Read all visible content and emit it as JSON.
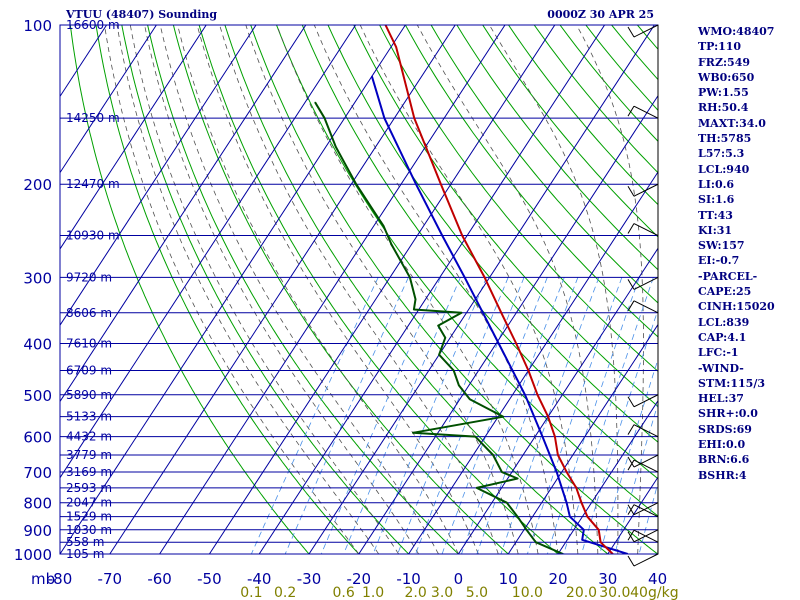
{
  "header": {
    "station": "VTUU (48407) Sounding",
    "timestamp": "0000Z 30 APR 25"
  },
  "indices": [
    "WMO:48407",
    "TP:110",
    "FRZ:549",
    "WB0:650",
    "PW:1.55",
    "RH:50.4",
    "MAXT:34.0",
    "TH:5785",
    "L57:5.3",
    "LCL:940",
    "LI:0.6",
    "SI:1.6",
    "TT:43",
    "KI:31",
    "SW:157",
    "EI:-0.7",
    "-PARCEL-",
    "CAPE:25",
    "CINH:15020",
    "LCL:839",
    "CAP:4.1",
    "LFC:-1",
    "-WIND-",
    "STM:115/3",
    "HEL:37",
    "SHR+:0.0",
    "SRDS:69",
    "EHI:0.0",
    "BRN:6.6",
    "BSHR:4"
  ],
  "colors": {
    "frame": "#0000a0",
    "isobar": "#0000a0",
    "isotherm": "#0000a0",
    "dry_adiabat": "#00a000",
    "moist_adiabat": "#505050",
    "mixing_ratio": "#4a90e8",
    "temperature": "#c00000",
    "dewpoint": "#005000",
    "parcel": "#0000c0",
    "label": "#0000a0",
    "mixing_label": "#808000"
  },
  "chart_data": {
    "type": "skew-t",
    "pressure_axis": {
      "unit": "mb",
      "ticks": [
        100,
        200,
        300,
        400,
        500,
        600,
        700,
        800,
        900,
        1000
      ],
      "range": [
        1000,
        100
      ],
      "scale": "log"
    },
    "temperature_axis": {
      "unit": "C",
      "ticks": [
        -80,
        -70,
        -60,
        -50,
        -40,
        -30,
        -20,
        -10,
        0,
        10,
        20,
        30,
        40
      ],
      "tick_labels": [
        "-80",
        "-70",
        "-60",
        "-50",
        "-40",
        "-30",
        "-20",
        "-10",
        "0",
        "10",
        "20",
        "30",
        "40"
      ],
      "range_at_bottom": [
        -80,
        40
      ]
    },
    "height_labels": [
      {
        "p": 100,
        "label": "16600 m"
      },
      {
        "p": 150,
        "label": "14250 m"
      },
      {
        "p": 200,
        "label": "12470 m"
      },
      {
        "p": 250,
        "label": "10930 m"
      },
      {
        "p": 300,
        "label": "9720 m"
      },
      {
        "p": 350,
        "label": "8606 m"
      },
      {
        "p": 400,
        "label": "7610 m"
      },
      {
        "p": 450,
        "label": "6709 m"
      },
      {
        "p": 500,
        "label": "5890 m"
      },
      {
        "p": 550,
        "label": "5133 m"
      },
      {
        "p": 600,
        "label": "4432 m"
      },
      {
        "p": 650,
        "label": "3779 m"
      },
      {
        "p": 700,
        "label": "3169 m"
      },
      {
        "p": 750,
        "label": "2593 m"
      },
      {
        "p": 800,
        "label": "2047 m"
      },
      {
        "p": 850,
        "label": "1529 m"
      },
      {
        "p": 900,
        "label": "1030 m"
      },
      {
        "p": 950,
        "label": "558 m"
      },
      {
        "p": 1000,
        "label": "105 m"
      }
    ],
    "mixing_ratio_labels": [
      {
        "w": 0.1,
        "label": "0.1"
      },
      {
        "w": 0.2,
        "label": "0.2"
      },
      {
        "w": 0.6,
        "label": "0.6"
      },
      {
        "w": 1.0,
        "label": "1.0"
      },
      {
        "w": 2.0,
        "label": "2.0"
      },
      {
        "w": 3.0,
        "label": "3.0"
      },
      {
        "w": 5.0,
        "label": "5.0"
      },
      {
        "w": 10.0,
        "label": "10.0"
      },
      {
        "w": 20.0,
        "label": "20.0"
      },
      {
        "w": 30.0,
        "label": "30.0"
      },
      {
        "w": 40.0,
        "label": "40"
      }
    ],
    "mixing_ratio_unit": "g/kg",
    "temperature": [
      {
        "p": 1000,
        "t": 31.0
      },
      {
        "p": 950,
        "t": 27.0
      },
      {
        "p": 900,
        "t": 25.0
      },
      {
        "p": 850,
        "t": 21.0
      },
      {
        "p": 800,
        "t": 18.0
      },
      {
        "p": 750,
        "t": 15.0
      },
      {
        "p": 700,
        "t": 11.0
      },
      {
        "p": 650,
        "t": 7.0
      },
      {
        "p": 600,
        "t": 4.0
      },
      {
        "p": 550,
        "t": 0.0
      },
      {
        "p": 500,
        "t": -5.0
      },
      {
        "p": 450,
        "t": -10.0
      },
      {
        "p": 400,
        "t": -16.0
      },
      {
        "p": 350,
        "t": -23.0
      },
      {
        "p": 300,
        "t": -31.0
      },
      {
        "p": 250,
        "t": -41.0
      },
      {
        "p": 200,
        "t": -52.0
      },
      {
        "p": 150,
        "t": -66.0
      },
      {
        "p": 110,
        "t": -79.0
      },
      {
        "p": 100,
        "t": -84.0
      }
    ],
    "dewpoint": [
      {
        "p": 1000,
        "t": 21.0
      },
      {
        "p": 950,
        "t": 14.0
      },
      {
        "p": 900,
        "t": 10.5
      },
      {
        "p": 850,
        "t": 7.0
      },
      {
        "p": 800,
        "t": 3.0
      },
      {
        "p": 750,
        "t": -5.0
      },
      {
        "p": 720,
        "t": 2.0
      },
      {
        "p": 700,
        "t": -2.0
      },
      {
        "p": 650,
        "t": -6.0
      },
      {
        "p": 600,
        "t": -12.0
      },
      {
        "p": 590,
        "t": -25.0
      },
      {
        "p": 550,
        "t": -9.0
      },
      {
        "p": 510,
        "t": -18.0
      },
      {
        "p": 480,
        "t": -22.0
      },
      {
        "p": 450,
        "t": -25.0
      },
      {
        "p": 420,
        "t": -30.0
      },
      {
        "p": 390,
        "t": -31.0
      },
      {
        "p": 370,
        "t": -34.0
      },
      {
        "p": 350,
        "t": -31.0
      },
      {
        "p": 345,
        "t": -41.0
      },
      {
        "p": 330,
        "t": -42.0
      },
      {
        "p": 300,
        "t": -46.0
      },
      {
        "p": 260,
        "t": -54.0
      },
      {
        "p": 240,
        "t": -58.0
      },
      {
        "p": 200,
        "t": -69.0
      },
      {
        "p": 170,
        "t": -78.0
      },
      {
        "p": 150,
        "t": -84.0
      },
      {
        "p": 140,
        "t": -88.0
      }
    ],
    "parcel": [
      {
        "p": 1000,
        "t": 34.0
      },
      {
        "p": 940,
        "t": 23.0
      },
      {
        "p": 900,
        "t": 22.0
      },
      {
        "p": 850,
        "t": 17.5
      },
      {
        "p": 800,
        "t": 15.0
      },
      {
        "p": 700,
        "t": 9.0
      },
      {
        "p": 600,
        "t": 1.5
      },
      {
        "p": 500,
        "t": -7.5
      },
      {
        "p": 400,
        "t": -19.5
      },
      {
        "p": 300,
        "t": -35.0
      },
      {
        "p": 250,
        "t": -45.0
      },
      {
        "p": 200,
        "t": -57.0
      },
      {
        "p": 150,
        "t": -72.0
      },
      {
        "p": 125,
        "t": -80.0
      }
    ],
    "wind_barbs": [
      {
        "p": 100
      },
      {
        "p": 150
      },
      {
        "p": 200
      },
      {
        "p": 250
      },
      {
        "p": 300
      },
      {
        "p": 350
      },
      {
        "p": 500
      },
      {
        "p": 600
      },
      {
        "p": 650
      },
      {
        "p": 700
      },
      {
        "p": 800
      },
      {
        "p": 850
      },
      {
        "p": 900
      },
      {
        "p": 950
      },
      {
        "p": 1000
      }
    ]
  }
}
